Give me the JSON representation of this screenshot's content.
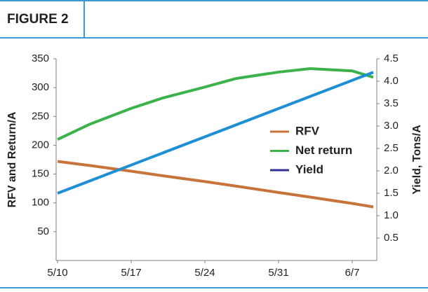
{
  "header": {
    "title": "FIGURE 2"
  },
  "chart_data": {
    "type": "line",
    "y_label": "RFV and Return/A",
    "y2_label": "Yield, Tons/A",
    "x": [
      "5/10",
      "5/13",
      "5/17",
      "5/20",
      "5/24",
      "5/27",
      "5/31",
      "6/3",
      "6/7",
      "6/9"
    ],
    "xlim": [
      "5/10",
      "6/9"
    ],
    "xticks": [
      "5/10",
      "5/17",
      "5/24",
      "5/31",
      "6/7"
    ],
    "ylim": [
      0,
      350
    ],
    "yticks": [
      50,
      100,
      150,
      200,
      250,
      300,
      350
    ],
    "y2lim": [
      0,
      4.5
    ],
    "y2ticks": [
      0.5,
      {
        "value": 1,
        "label": "1.0"
      },
      1.5,
      {
        "value": 2,
        "label": "2.0"
      },
      2.5,
      {
        "value": 3,
        "label": "3.0"
      },
      3.5,
      {
        "value": 4,
        "label": "4.0"
      },
      4.5
    ],
    "series": [
      {
        "name": "RFV",
        "color": "#c8733a",
        "values": [
          172,
          165,
          155,
          147,
          137,
          129,
          118,
          110,
          99,
          93
        ]
      },
      {
        "name": "Net return",
        "color": "#3cb34a",
        "values": [
          210,
          236,
          264,
          282,
          301,
          316,
          327,
          333,
          329,
          318
        ]
      },
      {
        "name": "Yield",
        "color": "#1e8fd5",
        "legend_color": "#2e3192",
        "axis": "y2",
        "values": [
          1.5,
          1.77,
          2.13,
          2.4,
          2.76,
          3.03,
          3.39,
          3.66,
          4.02,
          4.2
        ]
      }
    ]
  }
}
